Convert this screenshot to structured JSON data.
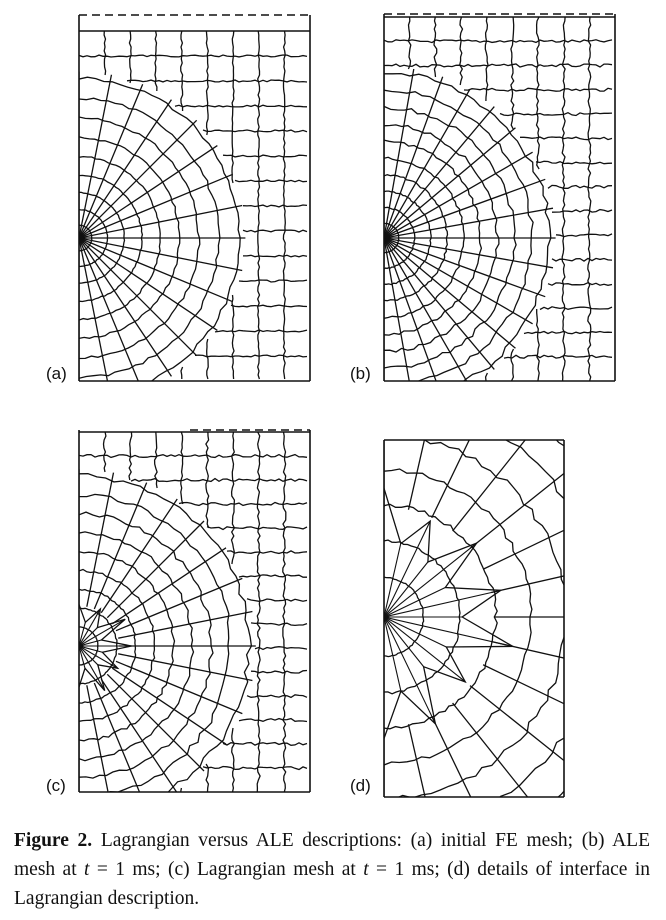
{
  "figure": {
    "panels": [
      {
        "id": "a",
        "label": "(a)",
        "variant": "initial"
      },
      {
        "id": "b",
        "label": "(b)",
        "variant": "ale"
      },
      {
        "id": "c",
        "label": "(c)",
        "variant": "lagrangian"
      },
      {
        "id": "d",
        "label": "(d)",
        "variant": "detail"
      }
    ],
    "caption": {
      "label": "Figure 2.",
      "text_1": " Lagrangian versus ALE descriptions: (a) initial FE mesh; (b) ALE mesh at ",
      "var_1": "t",
      "text_2": " = 1 ms; (c) Lagrangian mesh at ",
      "var_2": "t",
      "text_3": " = 1 ms; (d) details of interface in Lagrangian description."
    }
  }
}
